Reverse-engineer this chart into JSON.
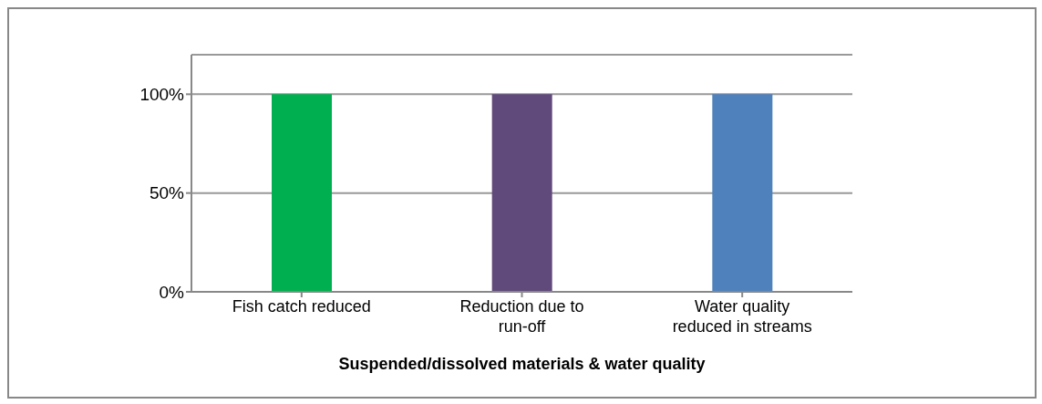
{
  "chart_data": {
    "type": "bar",
    "xlabel": "Suspended/dissolved materials & water quality",
    "categories": [
      "Fish catch reduced",
      "Reduction due to run-off",
      "Water quality reduced in streams"
    ],
    "values": [
      100,
      100,
      100
    ],
    "colors": [
      "#00b050",
      "#604a7b",
      "#4f81bd"
    ],
    "ylim": [
      0,
      120
    ],
    "yticks": [
      {
        "value": 0,
        "label": "0%"
      },
      {
        "value": 50,
        "label": "50%"
      },
      {
        "value": 100,
        "label": "100%"
      }
    ],
    "grid": "y"
  }
}
